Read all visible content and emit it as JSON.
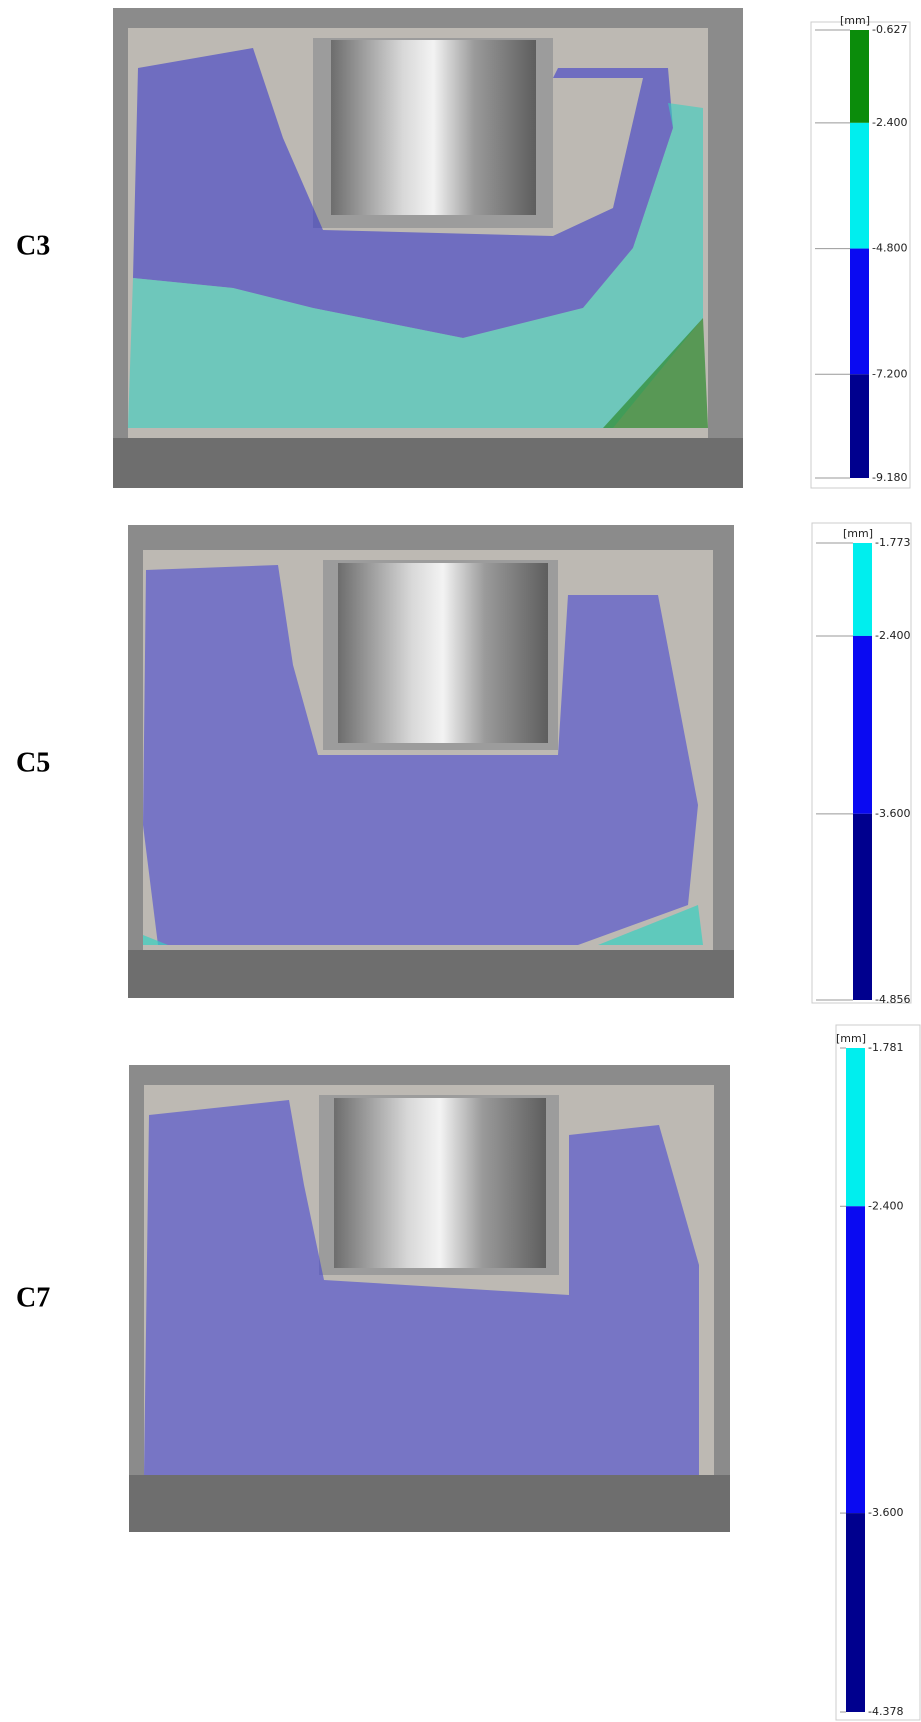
{
  "panels": [
    {
      "label": "C3",
      "colorbar": {
        "unit": "[mm]",
        "ticks": [
          -0.627,
          {
            "value": -2.4,
            "label": "-2.400"
          },
          {
            "value": -4.8,
            "label": "-4.800"
          },
          {
            "value": -7.2,
            "label": "-7.200"
          },
          {
            "value": -9.18,
            "label": "-9.180"
          }
        ],
        "colors": [
          "#0b8c0b",
          "#00eeee",
          "#0a0af2",
          "#00008e"
        ]
      }
    },
    {
      "label": "C5",
      "colorbar": {
        "unit": "[mm]",
        "ticks": [
          -1.773,
          {
            "value": -2.4,
            "label": "-2.400"
          },
          {
            "value": -3.6,
            "label": "-3.600"
          },
          -4.856
        ],
        "colors": [
          "#00eeee",
          "#0a0af2",
          "#00008e"
        ]
      }
    },
    {
      "label": "C7",
      "colorbar": {
        "unit": "[mm]",
        "ticks": [
          -1.781,
          {
            "value": -2.4,
            "label": "-2.400"
          },
          {
            "value": -3.6,
            "label": "-3.600"
          },
          -4.378
        ],
        "colors": [
          "#00eeee",
          "#0a0af2",
          "#00008e"
        ]
      }
    }
  ]
}
